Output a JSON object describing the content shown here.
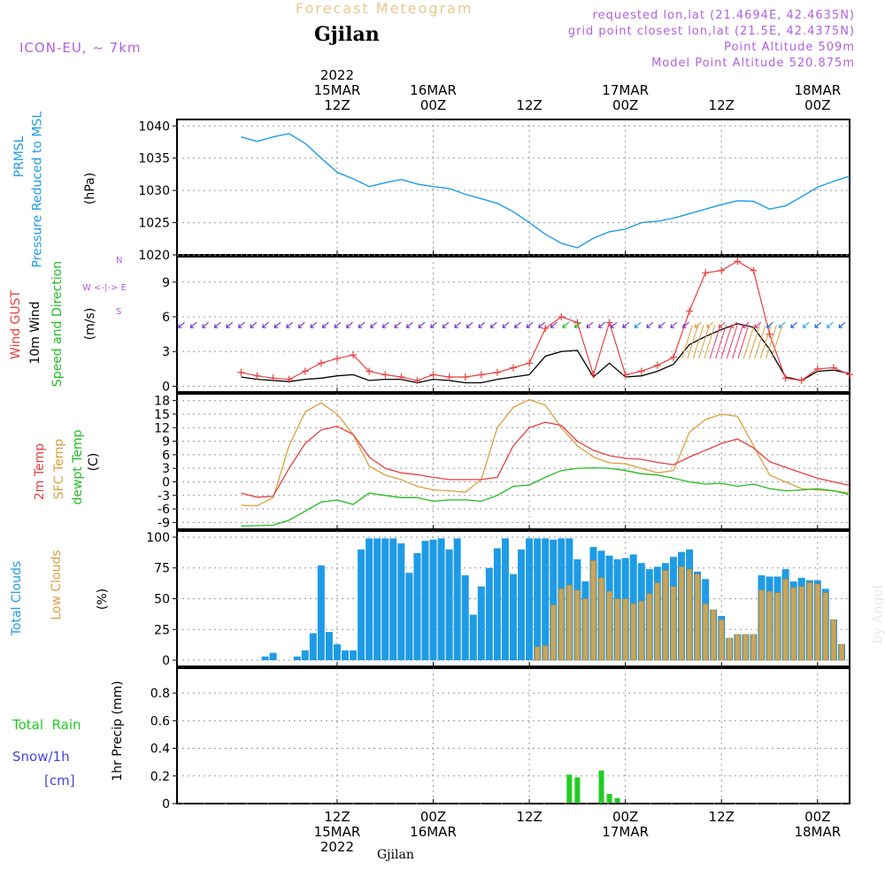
{
  "header": {
    "title_faint": "Forecast Meteogram",
    "location": "Gjilan",
    "model": "ICON-EU, ~ 7km",
    "requested": "requested lon,lat (21.4694E, 42.4635N)",
    "grid_point": "grid point closest lon,lat (21.5E, 42.4375N)",
    "point_alt": "Point Altitude 509m",
    "model_alt": "Model Point Altitude 520.875m"
  },
  "top_time_labels": [
    {
      "line1": "2022",
      "line2": "15MAR",
      "line3": "12Z"
    },
    {
      "line1": "",
      "line2": "16MAR",
      "line3": "00Z"
    },
    {
      "line1": "",
      "line2": "",
      "line3": "12Z"
    },
    {
      "line1": "",
      "line2": "17MAR",
      "line3": "00Z"
    },
    {
      "line1": "",
      "line2": "",
      "line3": "12Z"
    },
    {
      "line1": "",
      "line2": "18MAR",
      "line3": "00Z"
    }
  ],
  "bottom_time_labels": [
    {
      "line1": "12Z",
      "line2": "15MAR",
      "line3": "2022"
    },
    {
      "line1": "00Z",
      "line2": "16MAR",
      "line3": ""
    },
    {
      "line1": "12Z",
      "line2": "",
      "line3": ""
    },
    {
      "line1": "00Z",
      "line2": "17MAR",
      "line3": ""
    },
    {
      "line1": "12Z",
      "line2": "",
      "line3": ""
    },
    {
      "line1": "00Z",
      "line2": "18MAR",
      "line3": ""
    }
  ],
  "footer_location": "Gjilan",
  "watermark": "by Angel",
  "panel_labels": {
    "pressure": [
      "PRMSL",
      "Pressure Reduced to MSL",
      "(hPa)"
    ],
    "wind": [
      "Wind GUST",
      "10m Wind",
      "Speed and Direction",
      "(m/s)"
    ],
    "compass": [
      "N",
      "W <-|-> E",
      "S"
    ],
    "temp": [
      "2m Temp",
      "SFC Temp",
      "dewpt Temp",
      "(C)"
    ],
    "clouds": [
      "Total Clouds",
      "Low Clouds",
      "(%)"
    ],
    "precip": [
      "Total  Rain",
      "Snow/1h",
      "[cm]",
      "1hr Precip (mm)"
    ]
  },
  "colors": {
    "pressure": "#1e9be6",
    "gust": "#e84040",
    "wind": "#000000",
    "temp2m": "#e84040",
    "sfctemp": "#d9a040",
    "dewpt": "#22bb22",
    "total_clouds": "#1e9be6",
    "low_clouds": "#c8a45a",
    "rain": "#22cc22",
    "snow": "#4444dd",
    "header": "#b060e0"
  },
  "chart_data": [
    {
      "type": "line",
      "title": "PRMSL Pressure Reduced to MSL",
      "ylabel": "(hPa)",
      "ylim": [
        1020,
        1041
      ],
      "yticks": [
        1020,
        1025,
        1030,
        1035,
        1040
      ],
      "x_hours": [
        0,
        2,
        4,
        6,
        8,
        10,
        12,
        14,
        16,
        18,
        20,
        22,
        24,
        26,
        28,
        30,
        32,
        34,
        36,
        38,
        40,
        42,
        44,
        46,
        48,
        50,
        52,
        54,
        56,
        58,
        60,
        62,
        64,
        66,
        68,
        70,
        72,
        74,
        76
      ],
      "series": [
        {
          "name": "PRMSL",
          "values": [
            1038.3,
            1037.6,
            1038.3,
            1038.8,
            1037.3,
            1035.0,
            1032.8,
            1031.8,
            1030.6,
            1031.2,
            1031.7,
            1031.0,
            1030.6,
            1030.3,
            1029.4,
            1028.7,
            1028.0,
            1026.7,
            1025.0,
            1023.2,
            1021.8,
            1021.1,
            1022.6,
            1023.6,
            1024.0,
            1025.0,
            1025.2,
            1025.7,
            1026.4,
            1027.1,
            1027.8,
            1028.4,
            1028.3,
            1027.1,
            1027.6,
            1029.0,
            1030.5,
            1031.4,
            1032.2
          ]
        }
      ]
    },
    {
      "type": "line",
      "title": "Wind GUST / 10m Wind Speed and Direction",
      "ylabel": "(m/s)",
      "ylim": [
        -0.5,
        11.2
      ],
      "yticks": [
        0,
        3,
        6,
        9
      ],
      "x_hours": [
        0,
        2,
        4,
        6,
        8,
        10,
        12,
        14,
        16,
        18,
        20,
        22,
        24,
        26,
        28,
        30,
        32,
        34,
        36,
        38,
        40,
        42,
        44,
        46,
        48,
        50,
        52,
        54,
        56,
        58,
        60,
        62,
        64,
        66,
        68,
        70,
        72,
        74,
        76
      ],
      "series": [
        {
          "name": "Wind GUST",
          "values": [
            1.2,
            0.9,
            0.7,
            0.6,
            1.3,
            2.0,
            2.4,
            2.7,
            1.3,
            1.0,
            0.8,
            0.5,
            1.0,
            0.8,
            0.8,
            1.0,
            1.2,
            1.6,
            2.0,
            5.0,
            6.0,
            5.5,
            1.0,
            5.5,
            1.0,
            1.3,
            1.8,
            2.5,
            6.5,
            9.8,
            10.0,
            10.8,
            10.0,
            4.5,
            0.7,
            0.5,
            1.5,
            1.6,
            1.0
          ]
        },
        {
          "name": "10m Wind",
          "values": [
            0.8,
            0.6,
            0.5,
            0.4,
            0.6,
            0.7,
            0.9,
            1.0,
            0.5,
            0.6,
            0.6,
            0.3,
            0.6,
            0.5,
            0.3,
            0.3,
            0.6,
            0.8,
            1.0,
            2.6,
            3.0,
            3.1,
            0.8,
            2.0,
            0.8,
            0.9,
            1.3,
            1.9,
            3.6,
            4.3,
            4.9,
            5.4,
            5.1,
            3.2,
            0.8,
            0.5,
            1.3,
            1.4,
            1.1
          ]
        }
      ],
      "arrow_row_y": 5.3
    },
    {
      "type": "line",
      "title": "2m Temp / SFC Temp / dewpt Temp",
      "ylabel": "(C)",
      "ylim": [
        -10.5,
        19.5
      ],
      "yticks": [
        -9,
        -6,
        -3,
        0,
        3,
        6,
        9,
        12,
        15,
        18
      ],
      "x_hours": [
        0,
        2,
        4,
        6,
        8,
        10,
        12,
        14,
        16,
        18,
        20,
        22,
        24,
        26,
        28,
        30,
        32,
        34,
        36,
        38,
        40,
        42,
        44,
        46,
        48,
        50,
        52,
        54,
        56,
        58,
        60,
        62,
        64,
        66,
        68,
        70,
        72,
        74,
        76
      ],
      "series": [
        {
          "name": "2m Temp",
          "values": [
            -2.5,
            -3.4,
            -3.2,
            3.0,
            8.5,
            11.5,
            12.3,
            10.5,
            5.5,
            3.0,
            2.0,
            1.6,
            1.0,
            0.5,
            0.5,
            0.5,
            1.0,
            8.0,
            12.0,
            13.2,
            12.5,
            9.0,
            7.0,
            5.8,
            5.2,
            5.0,
            4.3,
            3.8,
            5.5,
            7.0,
            8.5,
            9.5,
            7.5,
            4.5,
            3.2,
            2.0,
            0.8,
            0.0,
            -0.8
          ]
        },
        {
          "name": "SFC Temp",
          "values": [
            -5.2,
            -5.3,
            -3.5,
            8.0,
            15.5,
            17.5,
            15.0,
            10.5,
            3.5,
            1.5,
            0.5,
            -1.0,
            -1.8,
            -2.0,
            -2.3,
            0.5,
            12.0,
            16.5,
            18.2,
            17.0,
            12.0,
            8.0,
            5.5,
            4.2,
            4.0,
            3.0,
            2.0,
            2.5,
            11.0,
            13.8,
            15.0,
            14.5,
            8.0,
            1.5,
            0.0,
            -1.5,
            -1.8,
            -2.0,
            -2.5
          ]
        },
        {
          "name": "dewpt Temp",
          "values": [
            -9.8,
            -9.7,
            -9.6,
            -8.5,
            -6.5,
            -4.5,
            -4.0,
            -5.0,
            -2.5,
            -3.0,
            -3.5,
            -3.5,
            -4.3,
            -4.0,
            -4.0,
            -4.3,
            -3.0,
            -1.0,
            -0.7,
            1.0,
            2.5,
            3.0,
            3.1,
            3.0,
            2.5,
            1.8,
            1.5,
            0.8,
            0.0,
            -0.5,
            -0.3,
            -1.0,
            -0.5,
            -1.5,
            -2.0,
            -1.8,
            -1.5,
            -2.0,
            -2.8
          ]
        }
      ]
    },
    {
      "type": "bar",
      "title": "Total Clouds / Low Clouds",
      "ylabel": "(%)",
      "ylim": [
        -5,
        105
      ],
      "yticks": [
        0,
        25,
        50,
        75,
        100
      ],
      "x_hours": [
        0,
        1,
        2,
        3,
        4,
        5,
        6,
        7,
        8,
        9,
        10,
        11,
        12,
        13,
        14,
        15,
        16,
        17,
        18,
        19,
        20,
        21,
        22,
        23,
        24,
        25,
        26,
        27,
        28,
        29,
        30,
        31,
        32,
        33,
        34,
        35,
        36,
        37,
        38,
        39,
        40,
        41,
        42,
        43,
        44,
        45,
        46,
        47,
        48,
        49,
        50,
        51,
        52,
        53,
        54,
        55,
        56,
        57,
        58,
        59,
        60,
        61,
        62,
        63,
        64,
        65,
        66,
        67,
        68,
        69,
        70,
        71,
        72,
        73,
        74,
        75
      ],
      "series": [
        {
          "name": "Total Clouds",
          "values": [
            0,
            0,
            0,
            3,
            6,
            0,
            0,
            3,
            8,
            22,
            77,
            23,
            13,
            8,
            8,
            90,
            99,
            99,
            99,
            99,
            95,
            71,
            87,
            97,
            98,
            99,
            90,
            99,
            69,
            37,
            60,
            75,
            91,
            99,
            70,
            90,
            99,
            99,
            99,
            98,
            99,
            99,
            82,
            64,
            92,
            89,
            85,
            82,
            83,
            86,
            79,
            74,
            76,
            79,
            84,
            88,
            90,
            72,
            66,
            41,
            36,
            18,
            21,
            21,
            21,
            69,
            68,
            68,
            74,
            64,
            67,
            65,
            65,
            58,
            33,
            13
          ]
        },
        {
          "name": "Low Clouds",
          "values": [
            0,
            0,
            0,
            0,
            0,
            0,
            0,
            0,
            0,
            0,
            0,
            0,
            0,
            0,
            0,
            0,
            0,
            0,
            0,
            0,
            0,
            0,
            0,
            0,
            0,
            0,
            0,
            0,
            0,
            0,
            0,
            0,
            0,
            0,
            0,
            0,
            0,
            11,
            12,
            45,
            58,
            61,
            57,
            50,
            81,
            67,
            56,
            50,
            50,
            46,
            48,
            54,
            63,
            73,
            60,
            76,
            74,
            70,
            46,
            41,
            33,
            18,
            21,
            21,
            21,
            57,
            56,
            55,
            66,
            59,
            60,
            63,
            62,
            55,
            33,
            13
          ]
        }
      ]
    },
    {
      "type": "bar",
      "title": "1hr Precip",
      "ylabel": "1hr Precip (mm)",
      "ylim": [
        0,
        0.98
      ],
      "yticks": [
        0,
        0.2,
        0.4,
        0.6,
        0.8
      ],
      "x_hours": [
        41,
        42,
        45,
        46,
        47
      ],
      "series": [
        {
          "name": "Total Rain",
          "values": [
            0.21,
            0.19,
            0.24,
            0.07,
            0.04
          ]
        }
      ]
    }
  ]
}
